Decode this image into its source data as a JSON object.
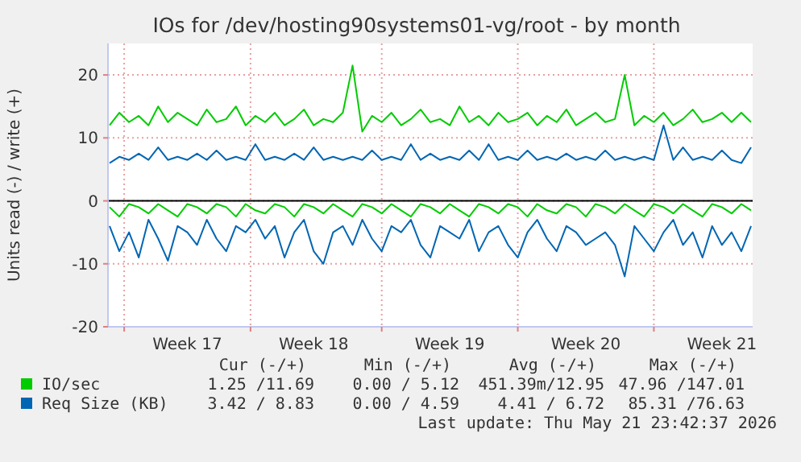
{
  "chart_data": {
    "type": "line",
    "title": "IOs for /dev/hosting90systems01-vg/root - by month",
    "ylabel": "Units read (-) / write (+)",
    "categories": [
      null,
      null,
      null,
      null,
      null,
      null,
      null,
      null,
      "Week 17",
      null,
      null,
      null,
      null,
      null,
      null,
      null,
      null,
      null,
      null,
      null,
      null,
      "Week 18",
      null,
      null,
      null,
      null,
      null,
      null,
      null,
      null,
      null,
      null,
      null,
      null,
      null,
      "Week 19",
      null,
      null,
      null,
      null,
      null,
      null,
      null,
      null,
      null,
      null,
      null,
      null,
      null,
      "Week 20",
      null,
      null,
      null,
      null,
      null,
      null,
      null,
      null,
      null,
      null,
      null,
      null,
      null,
      "Week 21",
      null,
      null,
      null
    ],
    "ylim": [
      -20,
      25
    ],
    "yticks": [
      -20,
      -10,
      0,
      10,
      20
    ],
    "grid": true,
    "legend": "bottom",
    "ref_lines": [
      {
        "axis": "y",
        "value": 0,
        "color": "#000000"
      }
    ],
    "series": [
      {
        "name": "IO/sec",
        "color": "#00cc00",
        "values": [
          12,
          14,
          12.5,
          13.5,
          12,
          15,
          12.5,
          14,
          13,
          12,
          14.5,
          12.5,
          13,
          15,
          12,
          13.5,
          12.5,
          14,
          12,
          13,
          14.5,
          12,
          13,
          12.5,
          14,
          21.5,
          11,
          13.5,
          12.5,
          14,
          12,
          13,
          14.5,
          12.5,
          13,
          12,
          15,
          12.5,
          13.5,
          12,
          14,
          12.5,
          13,
          14,
          12,
          13.5,
          12.5,
          14.5,
          12,
          13,
          14,
          12.5,
          13,
          20,
          12,
          13.5,
          12.5,
          14,
          12,
          13,
          14.5,
          12.5,
          13,
          14,
          12.5,
          14,
          12.5
        ]
      },
      {
        "color": "#00cc00",
        "values": [
          -1,
          -2.5,
          -0.5,
          -1,
          -2,
          -0.5,
          -1.5,
          -2.5,
          -0.5,
          -1,
          -2,
          -0.5,
          -1,
          -2.5,
          -0.5,
          -1.5,
          -2,
          -0.5,
          -1,
          -2.5,
          -0.5,
          -1,
          -2,
          -0.5,
          -1.5,
          -2.5,
          -0.5,
          -1,
          -2,
          -0.5,
          -1.5,
          -2.5,
          -0.5,
          -1,
          -2,
          -0.5,
          -1.5,
          -2.5,
          -0.5,
          -1,
          -2,
          -0.5,
          -1,
          -2.5,
          -0.5,
          -1.5,
          -2,
          -0.5,
          -1,
          -2.5,
          -0.5,
          -1,
          -2,
          -0.5,
          -1.5,
          -2.5,
          -0.5,
          -1,
          -2,
          -0.5,
          -1.5,
          -2.5,
          -0.5,
          -1,
          -2,
          -0.5,
          -1.5
        ]
      },
      {
        "name": "Req Size (KB)",
        "color": "#0066b3",
        "values": [
          6,
          7,
          6.5,
          7.5,
          6.5,
          8.5,
          6.5,
          7,
          6.5,
          7.5,
          6.5,
          8,
          6.5,
          7,
          6.5,
          9,
          6.5,
          7,
          6.5,
          7.5,
          6.5,
          8.5,
          6.5,
          7,
          6.5,
          7,
          6.5,
          8,
          6.5,
          7,
          6.5,
          9,
          6.5,
          7.5,
          6.5,
          7,
          6.5,
          8,
          6.5,
          9,
          6.5,
          7,
          6.5,
          8,
          6.5,
          7,
          6.5,
          7.5,
          6.5,
          7,
          6.5,
          8,
          6.5,
          7,
          6.5,
          7,
          6.5,
          12,
          6.5,
          8.5,
          6.5,
          7,
          6.5,
          8,
          6.5,
          6,
          8.5
        ]
      },
      {
        "color": "#0066b3",
        "values": [
          -4,
          -8,
          -5,
          -9,
          -3,
          -6,
          -9.5,
          -4,
          -5,
          -7,
          -3,
          -6,
          -8,
          -4,
          -5,
          -3,
          -6,
          -4,
          -9,
          -5,
          -3,
          -8,
          -10,
          -5,
          -4,
          -7,
          -3,
          -6,
          -8,
          -4,
          -5,
          -3,
          -7,
          -9,
          -4,
          -5,
          -6,
          -3,
          -8,
          -5,
          -4,
          -7,
          -9,
          -5,
          -3,
          -6,
          -8,
          -4,
          -5,
          -7,
          -6,
          -5,
          -7,
          -12,
          -4,
          -6,
          -8,
          -5,
          -3,
          -7,
          -5,
          -9,
          -4,
          -7,
          -5,
          -8,
          -4
        ]
      }
    ],
    "annotations": [
      "Cur (-/+)",
      "Min (-/+)",
      "Avg (-/+)",
      "Max (-/+)",
      "1.25 /11.69",
      "0.00 / 5.12",
      "451.39m/12.95",
      "47.96 /147.01",
      "3.42 / 8.83",
      "0.00 / 4.59",
      "4.41 / 6.72",
      "85.31 /76.63",
      "Last update: Thu May 21 23:42:37 2026"
    ]
  }
}
